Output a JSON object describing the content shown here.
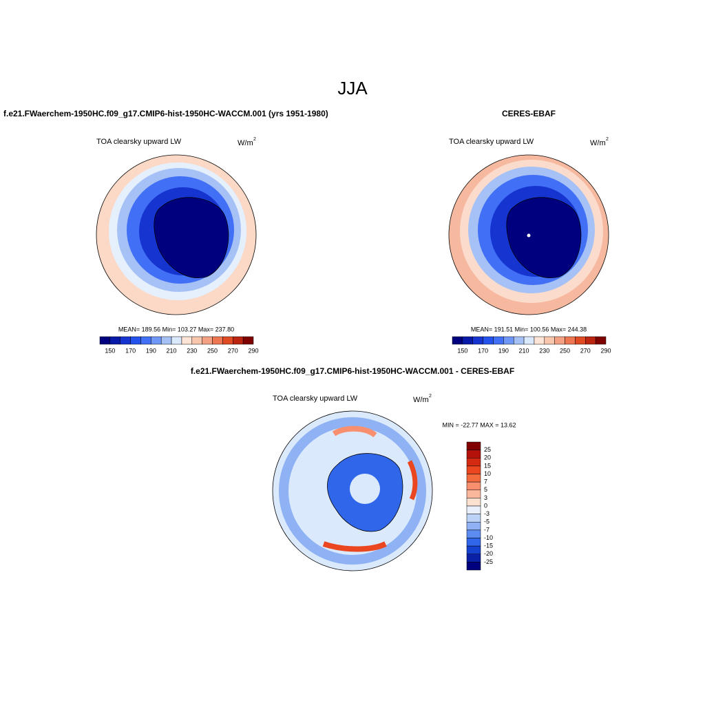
{
  "title": "JJA",
  "panels": [
    {
      "title": "f.e21.FWaerchem-1950HC.f09_g17.CMIP6-hist-1950HC-WACCM.001 (yrs 1951-1980)",
      "variable": "TOA clearsky upward LW",
      "units": "W/m",
      "units_power": "2",
      "stats": "MEAN= 189.56  Min= 103.27  Max= 237.80",
      "colorbar": {
        "labels": [
          150,
          170,
          190,
          210,
          230,
          250,
          270,
          290
        ],
        "colors": [
          "#00007f",
          "#0a1aa8",
          "#1634cf",
          "#2352ec",
          "#416ff5",
          "#6f97f5",
          "#a5c1f6",
          "#dbe9fd",
          "#fde4d6",
          "#f9c6ae",
          "#f4a283",
          "#ee7651",
          "#e04b24",
          "#bb240e",
          "#7f0000"
        ]
      }
    },
    {
      "title": "CERES-EBAF",
      "variable": "TOA clearsky upward LW",
      "units": "W/m",
      "units_power": "2",
      "stats": "MEAN= 191.51  Min= 100.56  Max= 244.38",
      "colorbar": {
        "labels": [
          150,
          170,
          190,
          210,
          230,
          250,
          270,
          290
        ],
        "colors": [
          "#00007f",
          "#0a1aa8",
          "#1634cf",
          "#2352ec",
          "#416ff5",
          "#6f97f5",
          "#a5c1f6",
          "#dbe9fd",
          "#fde4d6",
          "#f9c6ae",
          "#f4a283",
          "#ee7651",
          "#e04b24",
          "#bb240e",
          "#7f0000"
        ]
      }
    },
    {
      "title": "f.e21.FWaerchem-1950HC.f09_g17.CMIP6-hist-1950HC-WACCM.001 - CERES-EBAF",
      "variable": "TOA clearsky upward LW",
      "units": "W/m",
      "units_power": "2",
      "stats": "MIN = -22.77 MAX =  13.62",
      "colorbar": {
        "labels": [
          25,
          20,
          15,
          10,
          7,
          5,
          3,
          0,
          -3,
          -5,
          -7,
          -10,
          -15,
          -20,
          -25
        ],
        "colors": [
          "#800000",
          "#b3110a",
          "#d42a12",
          "#ea461f",
          "#f36a3c",
          "#f89070",
          "#fbb79c",
          "#fde0d0",
          "#e8f0fc",
          "#bcd2f7",
          "#8fb2f4",
          "#5c8cf0",
          "#3066ea",
          "#1541d1",
          "#0a20a6",
          "#00007f"
        ]
      }
    }
  ]
}
